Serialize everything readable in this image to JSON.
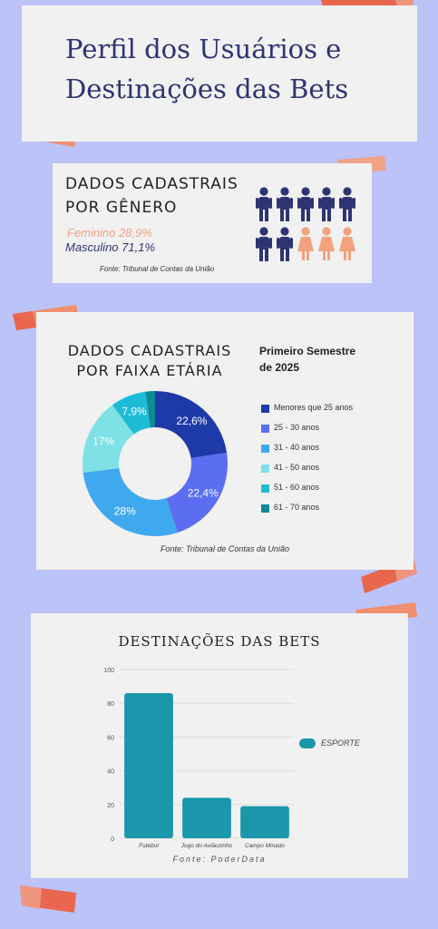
{
  "title": "Perfil dos Usuários e Destinações das Bets",
  "gender": {
    "title_line1": "DADOS CADASTRAIS",
    "title_line2": "POR GÊNERO",
    "feminino": "Feminino 28,9%",
    "masculino": "Masculino 71,1%",
    "source": "Fonte: Tribunal de Contas da União",
    "icon_color_male": "#2e3472",
    "icon_color_female": "#f2a27d"
  },
  "age": {
    "title_line1": "DADOS CADASTRAIS",
    "title_line2": "POR FAIXA ETÁRIA",
    "subtitle_line1": "Primeiro Semestre",
    "subtitle_line2": "de 2025",
    "source": "Fonte: Tribunal de Contas da União"
  },
  "bets": {
    "title": "DESTINAÇÕES DAS BETS",
    "legend": "ESPORTE",
    "source": "Fonte: PoderData"
  },
  "chart_data": [
    {
      "type": "pie",
      "title": "DADOS CADASTRAIS POR FAIXA ETÁRIA",
      "subtitle": "Primeiro Semestre de 2025",
      "legend_position": "right",
      "slices": [
        {
          "label": "Menores que 25 anos",
          "value": 22.6,
          "display": "22,6%",
          "color": "#1e3aa8"
        },
        {
          "label": "25 - 30 anos",
          "value": 22.4,
          "display": "22,4%",
          "color": "#5b6ef2"
        },
        {
          "label": "31 - 40 anos",
          "value": 28,
          "display": "28%",
          "color": "#3fa9f0"
        },
        {
          "label": "41 - 50 anos",
          "value": 17,
          "display": "17%",
          "color": "#7fe0e6"
        },
        {
          "label": "51 - 60 anos",
          "value": 7.9,
          "display": "7,9%",
          "color": "#1dbcd6"
        },
        {
          "label": "61 - 70 anos",
          "value": 2.1,
          "display": "",
          "color": "#0f8a94"
        }
      ]
    },
    {
      "type": "bar",
      "title": "DESTINAÇÕES DAS BETS",
      "categories": [
        "Futebol",
        "Jogo do Aviãozinho",
        "Campo Minado"
      ],
      "series": [
        {
          "name": "ESPORTE",
          "values": [
            86,
            24,
            19
          ],
          "color": "#1a97ab"
        }
      ],
      "ylim": [
        0,
        100
      ],
      "yticks": [
        0,
        20,
        40,
        60,
        80,
        100
      ],
      "grid": true,
      "legend_position": "right"
    }
  ]
}
